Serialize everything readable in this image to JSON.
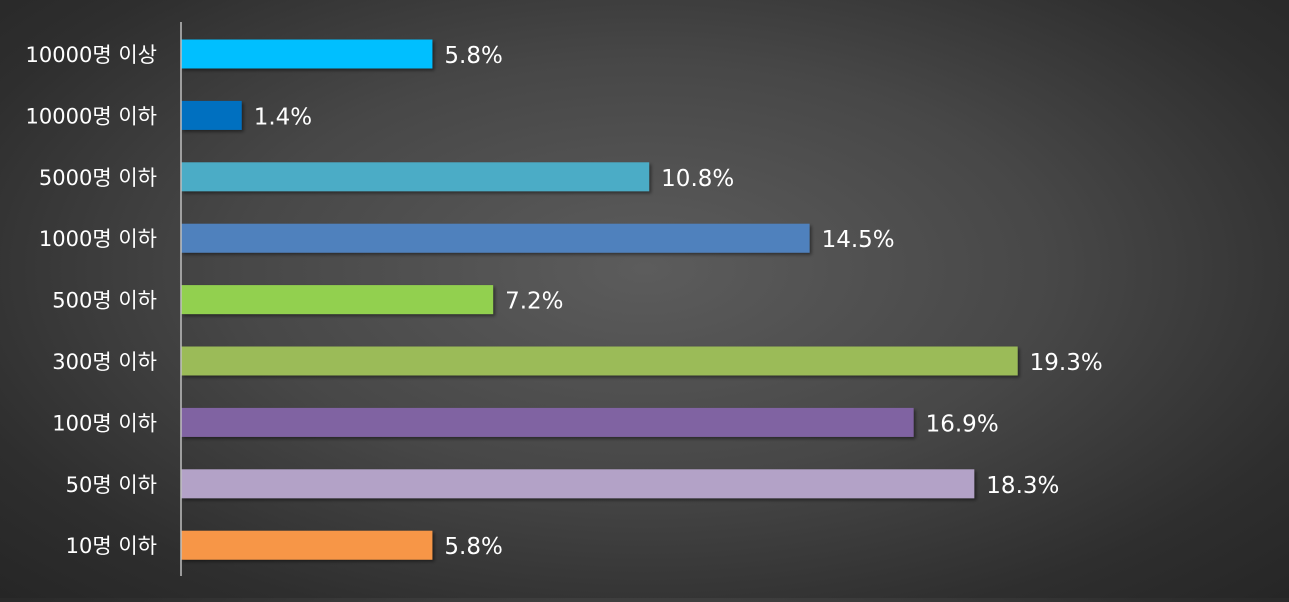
{
  "chart_data": {
    "type": "bar",
    "orientation": "horizontal",
    "title": "",
    "xlabel": "",
    "ylabel": "",
    "categories": [
      "10000명 이상",
      "10000명 이하",
      "5000명 이하",
      "1000명 이하",
      "500명 이하",
      "300명 이하",
      "100명 이하",
      "50명 이하",
      "10명 이하"
    ],
    "values": [
      5.8,
      1.4,
      10.8,
      14.5,
      7.2,
      19.3,
      16.9,
      18.3,
      5.8
    ],
    "value_labels": [
      "5.8%",
      "1.4%",
      "10.8%",
      "14.5%",
      "7.2%",
      "19.3%",
      "16.9%",
      "18.3%",
      "5.8%"
    ],
    "unit": "%",
    "xlim": [
      0,
      25
    ],
    "colors": [
      "#00bfff",
      "#0070c0",
      "#4bacc6",
      "#4f81bd",
      "#92d050",
      "#9bbb59",
      "#8064a2",
      "#b3a2c7",
      "#f79646"
    ],
    "grid": false,
    "legend": "none"
  }
}
